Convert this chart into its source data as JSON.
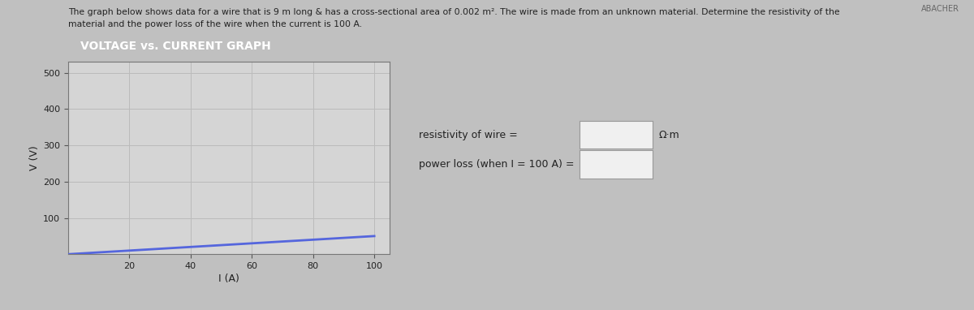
{
  "description_line1": "The graph below shows data for a wire that is 9 m long & has a cross-sectional area of 0.002 m². The wire is made from an unknown material. Determine the resistivity of the",
  "description_line2": "material and the power loss of the wire when the current is 100 A.",
  "chart_title": "VOLTAGE vs. CURRENT GRAPH",
  "chart_title_bg": "#cc44bb",
  "chart_title_color": "#ffffff",
  "ylabel": "V (V)",
  "xlabel": "I (A)",
  "yticks": [
    100,
    200,
    300,
    400,
    500
  ],
  "xticks": [
    20,
    40,
    60,
    80,
    100
  ],
  "ylim": [
    0,
    530
  ],
  "xlim": [
    0,
    105
  ],
  "line_x": [
    0,
    100
  ],
  "line_y": [
    0,
    50
  ],
  "line_color": "#5566dd",
  "line_width": 2.0,
  "grid_color": "#bbbbbb",
  "plot_bg_color": "#d5d5d5",
  "label_resistivity": "resistivity of wire =",
  "label_power": "power loss (when I = 100 A) =",
  "unit_resistivity": "Ω·m",
  "answer_box_color": "#f0f0f0",
  "answer_box_border": "#999999",
  "top_right_label": "ABACHER",
  "fig_bg_color": "#c0c0c0",
  "text_color": "#222222",
  "desc_fontsize": 7.8,
  "title_fontsize": 10,
  "tick_fontsize": 8,
  "axis_label_fontsize": 9
}
